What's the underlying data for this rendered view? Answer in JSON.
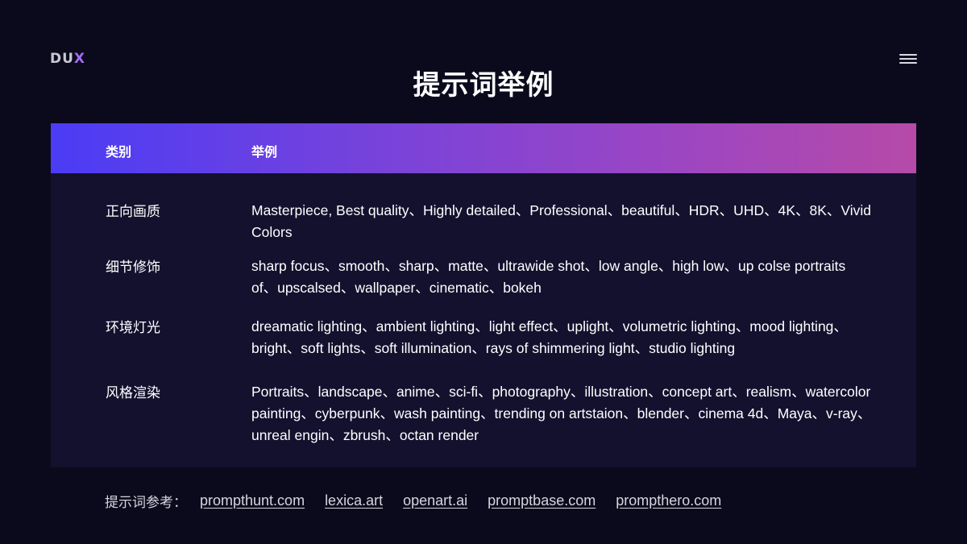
{
  "logo": {
    "text_main": "DU",
    "text_accent": "X"
  },
  "page_title": "提示词举例",
  "table": {
    "headers": {
      "category": "类别",
      "example": "举例"
    },
    "rows": [
      {
        "category": "正向画质",
        "example": "Masterpiece, Best quality、Highly detailed、Professional、beautiful、HDR、UHD、4K、8K、Vivid Colors"
      },
      {
        "category": "细节修饰",
        "example": "sharp focus、smooth、sharp、matte、ultrawide shot、low angle、high low、up colse portraits of、upscalsed、wallpaper、cinematic、bokeh"
      },
      {
        "category": "环境灯光",
        "example": "dreamatic lighting、ambient lighting、light effect、uplight、volumetric lighting、mood lighting、bright、soft lights、soft illumination、rays of shimmering light、studio lighting"
      },
      {
        "category": "风格渲染",
        "example": "Portraits、landscape、anime、sci-fi、photography、illustration、concept art、realism、watercolor painting、cyberpunk、wash painting、trending on artstaion、blender、cinema 4d、Maya、v-ray、unreal engin、zbrush、octan render"
      }
    ]
  },
  "footer": {
    "label": "提示词参考：",
    "links": [
      "prompthunt.com",
      "lexica.art",
      "openart.ai",
      "promptbase.com",
      "prompthero.com"
    ]
  },
  "icons": {
    "menu": "hamburger-menu-icon"
  },
  "colors": {
    "background": "#0b0a1c",
    "table_body": "#13112e",
    "header_gradient_start": "#4b3cf5",
    "header_gradient_end": "#b64aa8",
    "logo_accent": "#a56cf0"
  }
}
